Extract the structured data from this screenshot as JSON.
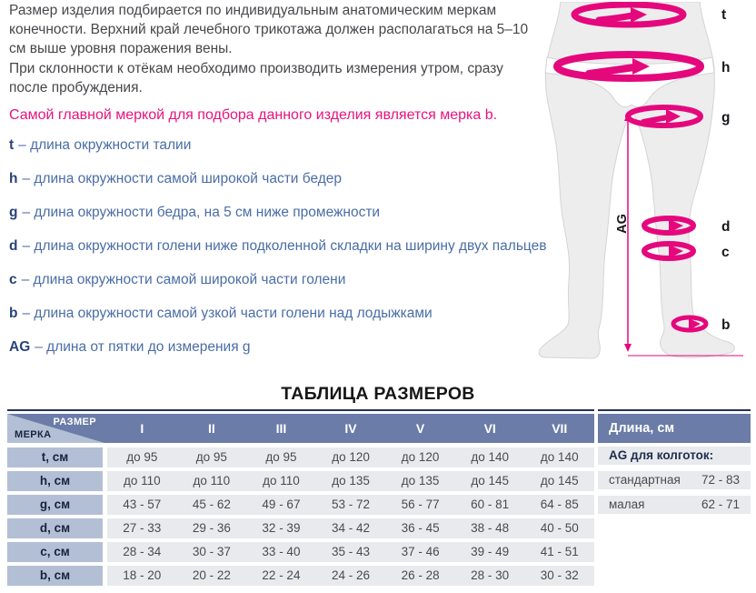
{
  "intro": {
    "p1": "Размер изделия подбирается по индивидуальным анатомическим меркам конечности. Верхний край лечебного трикотажа должен располагаться на 5–10 см выше уровня поражения вены.",
    "p2": "При склонности к отёкам необходимо производить измерения утром, сразу после пробуждения.",
    "highlight": "Самой главной меркой для подбора данного изделия является мерка b."
  },
  "definitions": [
    {
      "letter": "t",
      "text": "– длина окружности талии"
    },
    {
      "letter": "h",
      "text": "– длина окружности самой широкой части бедер"
    },
    {
      "letter": "g",
      "text": "– длина окружности бедра, на 5 см ниже промежности"
    },
    {
      "letter": "d",
      "text": "– длина окружности голени ниже подколенной складки на ширину двух пальцев"
    },
    {
      "letter": "c",
      "text": "– длина окружности самой широкой части голени"
    },
    {
      "letter": "b",
      "text": "– длина окружности самой узкой части голени над лодыжками"
    },
    {
      "letter": "AG",
      "text": "– длина от пятки до измерения g"
    }
  ],
  "diagram": {
    "labels": [
      "t",
      "h",
      "g",
      "d",
      "c",
      "b"
    ],
    "ag_label": "AG"
  },
  "size_table": {
    "title": "ТАБЛИЦА РАЗМЕРОВ",
    "corner": {
      "top": "РАЗМЕР",
      "bottom": "МЕРКА"
    },
    "columns": [
      "I",
      "II",
      "III",
      "IV",
      "V",
      "VI",
      "VII"
    ],
    "rows": [
      {
        "label": "t, см",
        "values": [
          "до 95",
          "до 95",
          "до 95",
          "до 120",
          "до 120",
          "до 140",
          "до 140"
        ]
      },
      {
        "label": "h, см",
        "values": [
          "до 110",
          "до 110",
          "до 110",
          "до 135",
          "до 135",
          "до 145",
          "до 145"
        ]
      },
      {
        "label": "g, см",
        "values": [
          "43 - 57",
          "45 - 62",
          "49 - 67",
          "53 - 72",
          "56 - 77",
          "60 - 81",
          "64 - 85"
        ]
      },
      {
        "label": "d, см",
        "values": [
          "27 - 33",
          "29 - 36",
          "32 - 39",
          "34 - 42",
          "36 - 45",
          "38 - 48",
          "40 - 50"
        ]
      },
      {
        "label": "c, см",
        "values": [
          "28 - 34",
          "30 - 37",
          "33 - 40",
          "35 - 43",
          "37 - 46",
          "39 - 49",
          "41 - 51"
        ]
      },
      {
        "label": "b, см",
        "values": [
          "18 - 20",
          "20 - 22",
          "22 - 24",
          "24 - 26",
          "26 - 28",
          "28 - 30",
          "30 - 32"
        ]
      }
    ]
  },
  "length_panel": {
    "title": "Длина, см",
    "subtitle": "AG для колготок:",
    "rows": [
      {
        "label": "стандартная",
        "value": "72 - 83"
      },
      {
        "label": "малая",
        "value": "62 - 71"
      }
    ]
  },
  "colors": {
    "magenta": "#e5077c",
    "header_blue": "#6a7ca7",
    "light_blue": "#b3bfd5",
    "row_gray": "#e8eaed",
    "navy": "#26324f",
    "definition_blue": "#4a6da6"
  }
}
